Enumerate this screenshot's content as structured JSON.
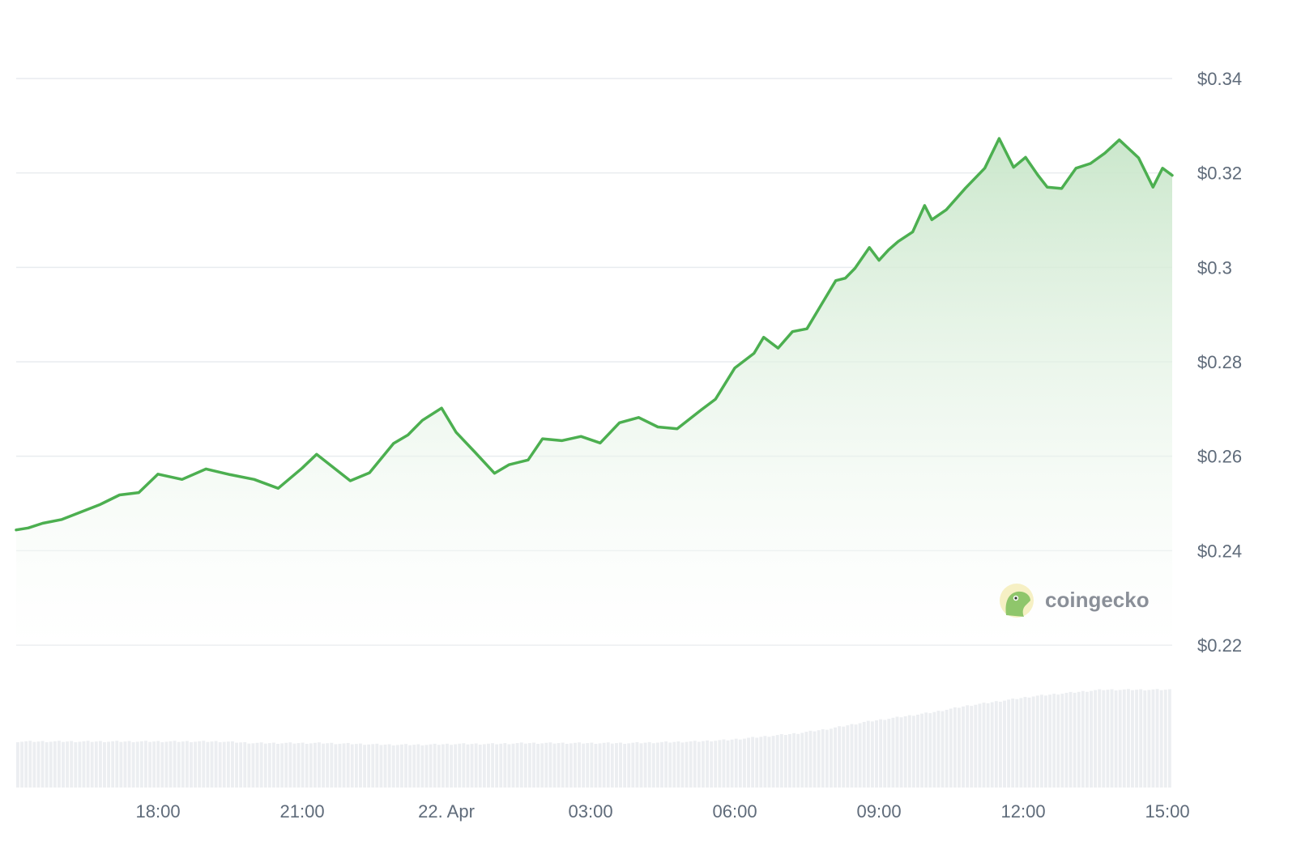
{
  "chart_data": {
    "type": "area",
    "y_axis": {
      "ticks": [
        "$0.34",
        "$0.32",
        "$0.3",
        "$0.28",
        "$0.26",
        "$0.24",
        "$0.22"
      ],
      "tick_values": [
        0.34,
        0.32,
        0.3,
        0.28,
        0.26,
        0.24,
        0.22
      ],
      "range": [
        0.22,
        0.34
      ]
    },
    "x_axis": {
      "ticks": [
        "18:00",
        "21:00",
        "22. Apr",
        "03:00",
        "06:00",
        "09:00",
        "12:00",
        "15:00"
      ],
      "tick_hours": [
        18,
        21,
        24,
        27,
        30,
        33,
        36,
        39
      ],
      "range_hours": [
        15.05,
        39.1
      ]
    },
    "grid": true,
    "legend": "none",
    "colors": {
      "line": "#4caf50",
      "fill_top": "#c8e6c9",
      "volume": "#eceef1",
      "grid": "#e9ecef",
      "tick_text": "#5f6b7a"
    },
    "series": [
      {
        "type": "line",
        "x_hours": [
          15.05,
          15.3,
          15.6,
          16.0,
          16.4,
          16.8,
          17.2,
          17.6,
          18.0,
          18.5,
          19.0,
          19.5,
          20.0,
          20.5,
          21.0,
          21.3,
          21.7,
          22.0,
          22.4,
          22.9,
          23.2,
          23.5,
          23.9,
          24.2,
          24.6,
          25.0,
          25.3,
          25.7,
          26.0,
          26.4,
          26.8,
          27.2,
          27.6,
          28.0,
          28.4,
          28.8,
          29.3,
          29.6,
          30.0,
          30.4,
          30.6,
          30.9,
          31.2,
          31.5,
          31.8,
          32.1,
          32.3,
          32.5,
          32.8,
          33.0,
          33.2,
          33.4,
          33.7,
          33.95,
          34.1,
          34.4,
          34.8,
          35.2,
          35.5,
          35.8,
          36.05,
          36.3,
          36.5,
          36.8,
          37.1,
          37.4,
          37.7,
          38.0,
          38.4,
          38.7,
          38.9,
          39.1
        ],
        "values": [
          0.2444,
          0.2448,
          0.2458,
          0.2466,
          0.2482,
          0.2498,
          0.2518,
          0.2523,
          0.2562,
          0.2551,
          0.2573,
          0.2561,
          0.2551,
          0.2532,
          0.2575,
          0.2604,
          0.2572,
          0.2548,
          0.2565,
          0.2627,
          0.2645,
          0.2676,
          0.2702,
          0.2651,
          0.2608,
          0.2564,
          0.2582,
          0.2592,
          0.2637,
          0.2633,
          0.2642,
          0.2628,
          0.2671,
          0.2682,
          0.2662,
          0.2658,
          0.2698,
          0.2721,
          0.2787,
          0.2818,
          0.2852,
          0.2829,
          0.2864,
          0.287,
          0.2921,
          0.2972,
          0.2977,
          0.2998,
          0.3042,
          0.3015,
          0.3037,
          0.3055,
          0.3075,
          0.3131,
          0.3101,
          0.3122,
          0.3168,
          0.321,
          0.3273,
          0.3212,
          0.3233,
          0.3196,
          0.317,
          0.3167,
          0.321,
          0.322,
          0.3242,
          0.327,
          0.3232,
          0.317,
          0.321,
          0.3195
        ]
      }
    ],
    "volume": {
      "x_hours_start": 15.05,
      "x_hours_end": 39.1,
      "relative_levels": [
        0.28,
        0.28,
        0.28,
        0.28,
        0.28,
        0.28,
        0.28,
        0.27,
        0.27,
        0.27,
        0.265,
        0.26,
        0.26,
        0.265,
        0.265,
        0.27,
        0.27,
        0.27,
        0.27,
        0.275,
        0.28,
        0.29,
        0.31,
        0.33,
        0.36,
        0.4,
        0.43,
        0.46,
        0.5,
        0.53,
        0.56,
        0.58,
        0.6,
        0.6,
        0.6
      ]
    }
  },
  "watermark": {
    "brand": "coingecko",
    "icon": "gecko-icon"
  }
}
